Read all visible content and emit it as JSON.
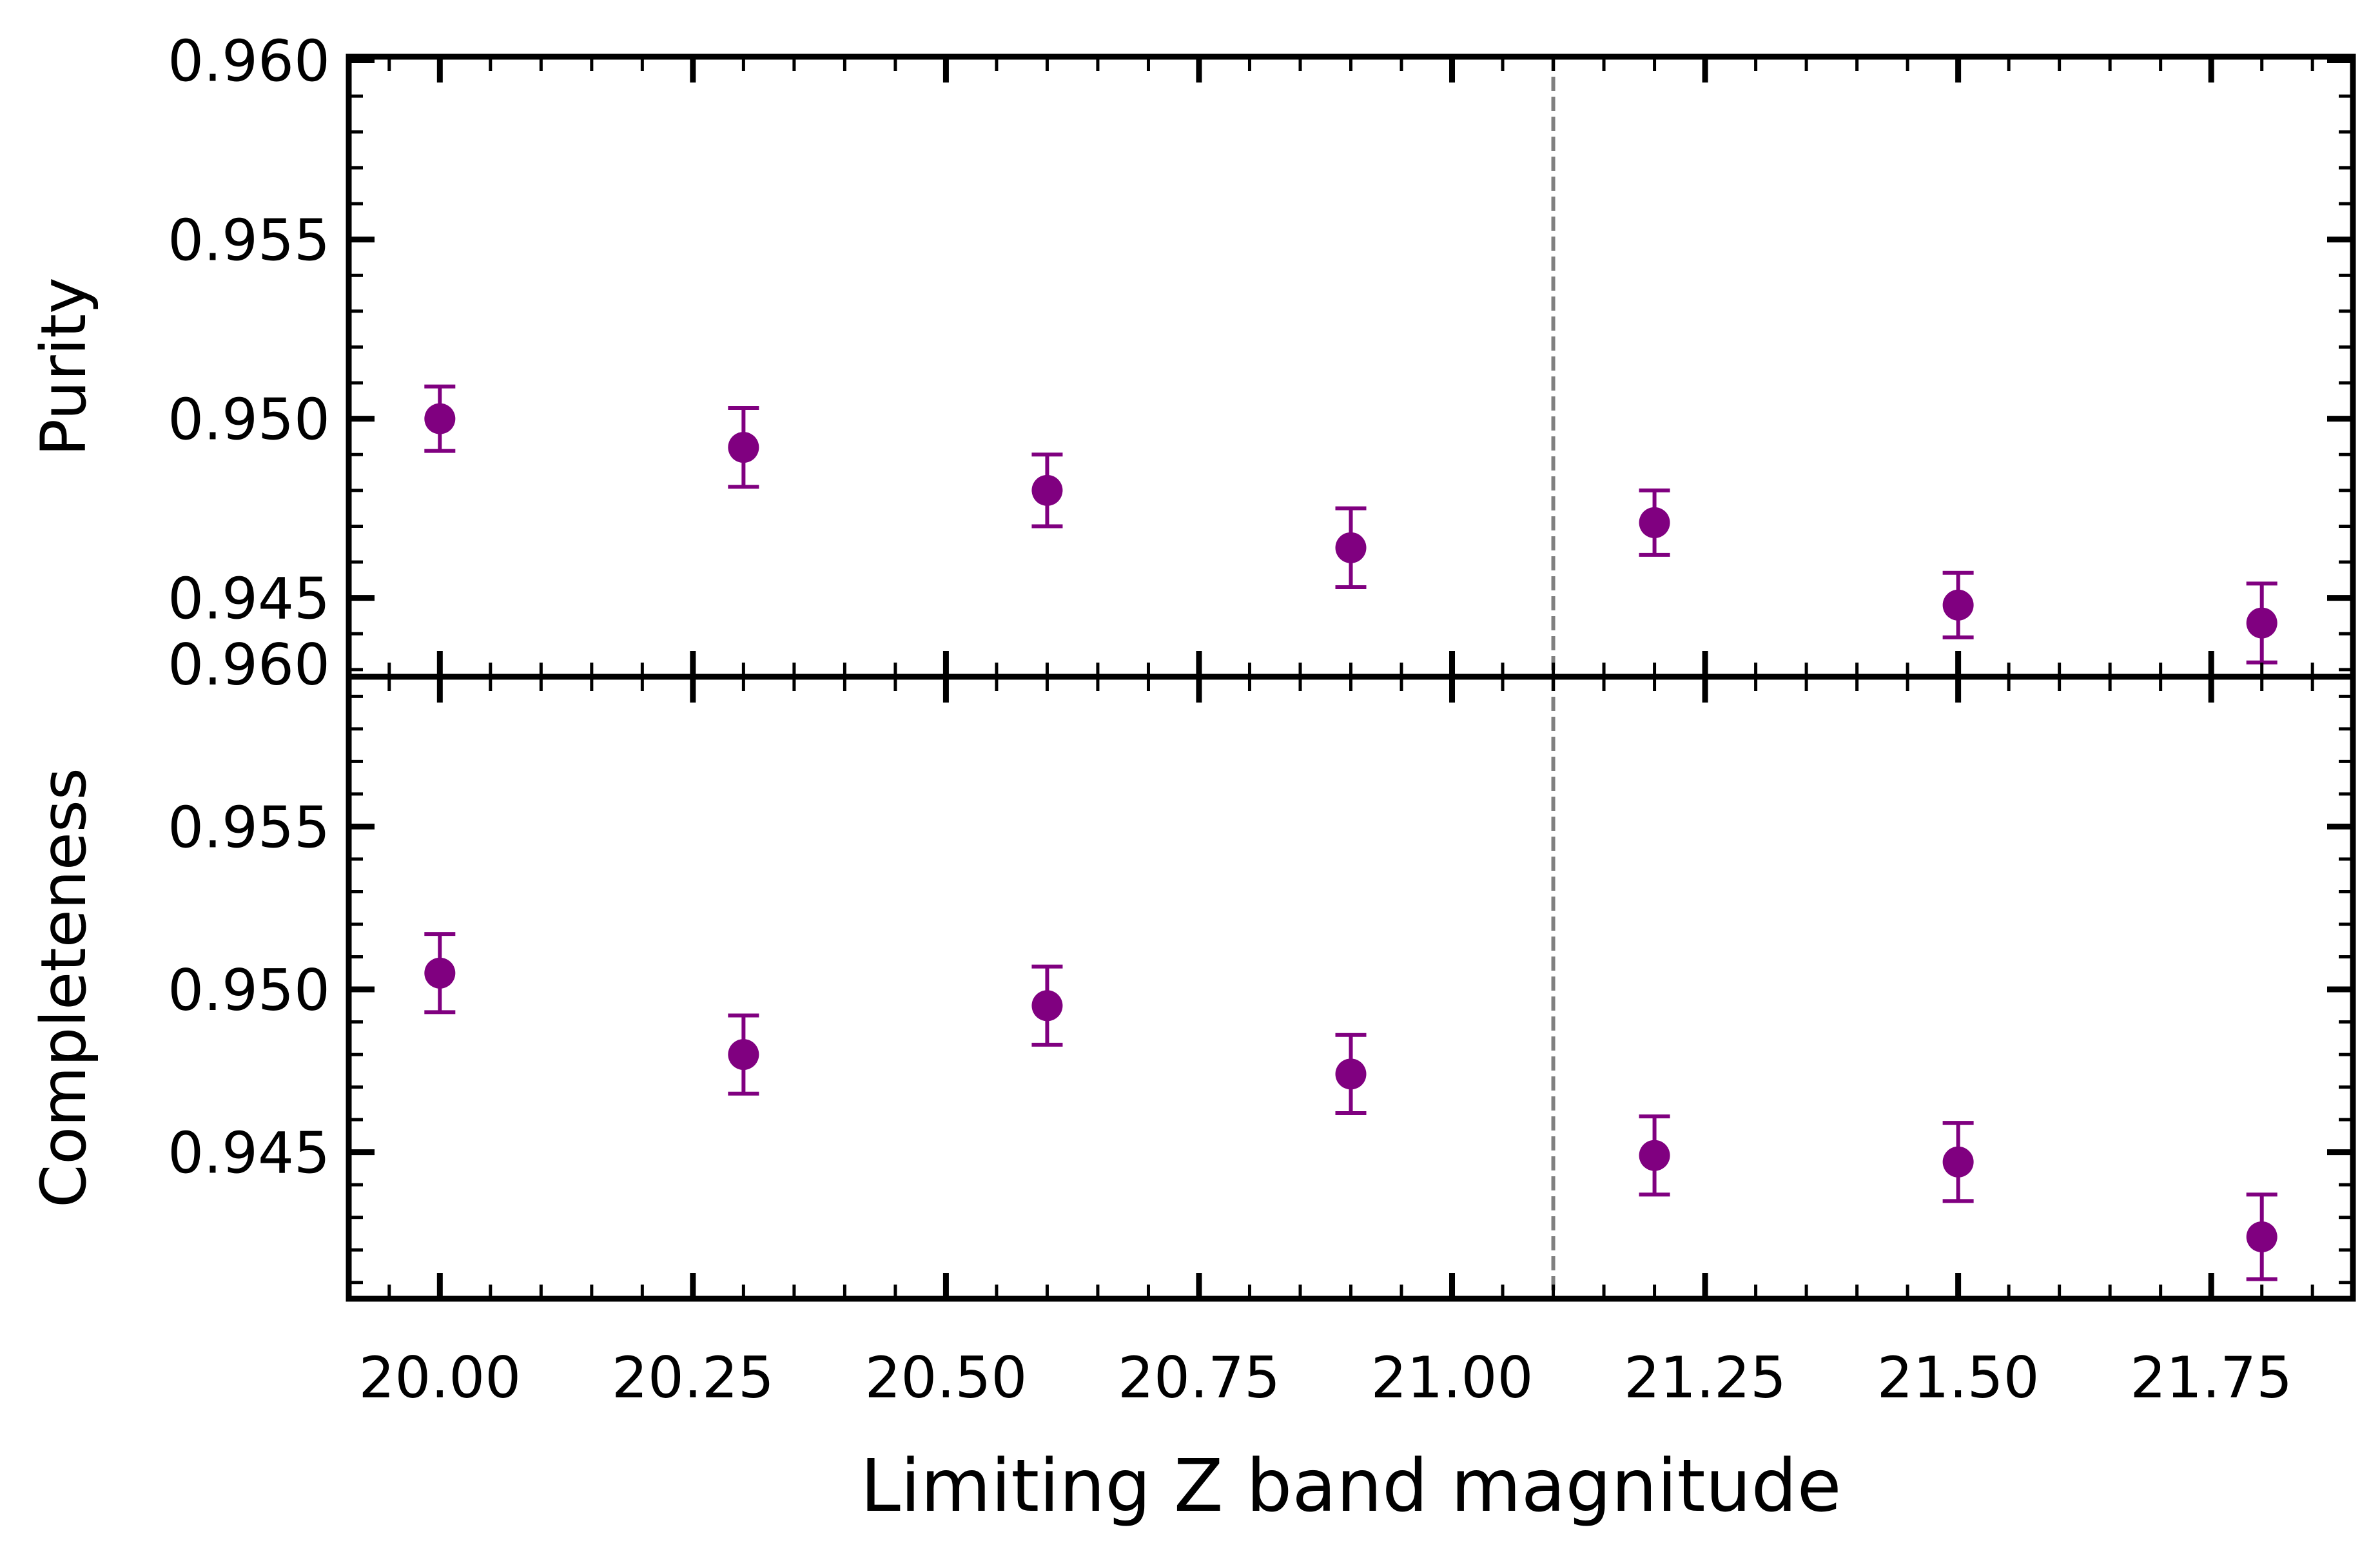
{
  "chart_data": [
    {
      "type": "scatter",
      "panel": "top",
      "ylabel": "Purity",
      "xlim": [
        19.91,
        21.89
      ],
      "ylim": [
        0.9428,
        0.9601
      ],
      "y_tick_labels": [
        "0.945",
        "0.950",
        "0.955",
        "0.960"
      ],
      "x_tick_labels": [],
      "reference_line_x": 21.1,
      "series": [
        {
          "color": "#800080",
          "x": [
            20.0,
            20.3,
            20.6,
            20.9,
            21.2,
            21.5,
            21.8
          ],
          "y": [
            0.95,
            0.9492,
            0.948,
            0.9464,
            0.9471,
            0.9448,
            0.9443
          ],
          "yerr": [
            0.0009,
            0.0011,
            0.001,
            0.0011,
            0.0009,
            0.0009,
            0.0011
          ]
        }
      ]
    },
    {
      "type": "scatter",
      "panel": "bottom",
      "ylabel": "Completeness",
      "xlabel": "Limiting Z band magnitude",
      "xlim": [
        19.91,
        21.89
      ],
      "ylim": [
        0.9405,
        0.9596
      ],
      "y_tick_labels": [
        "0.945",
        "0.950",
        "0.955",
        "0.960"
      ],
      "x_tick_labels": [
        "20.00",
        "20.25",
        "20.50",
        "20.75",
        "21.00",
        "21.25",
        "21.50",
        "21.75"
      ],
      "reference_line_x": 21.1,
      "series": [
        {
          "color": "#800080",
          "x": [
            20.0,
            20.3,
            20.6,
            20.9,
            21.2,
            21.5,
            21.8
          ],
          "y": [
            0.9505,
            0.948,
            0.9495,
            0.9474,
            0.9449,
            0.9447,
            0.9424
          ],
          "yerr": [
            0.0012,
            0.0012,
            0.0012,
            0.0012,
            0.0012,
            0.0012,
            0.0013
          ]
        }
      ]
    }
  ],
  "colors": {
    "marker": "#800080",
    "reference_line": "#808080",
    "axes": "#000000"
  }
}
